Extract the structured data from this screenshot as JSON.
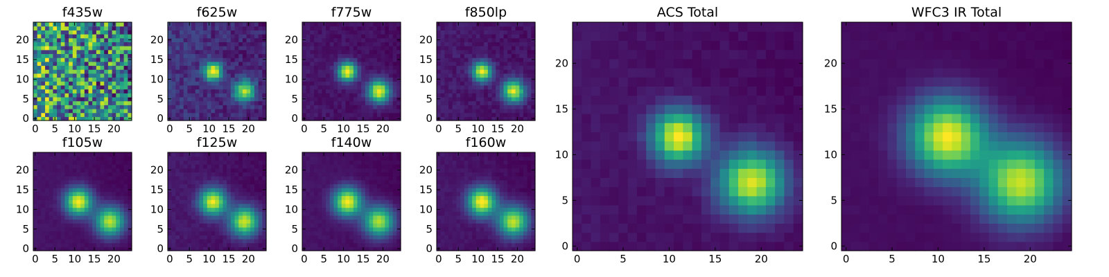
{
  "chart_data": [
    {
      "type": "heatmap",
      "title": "f435w",
      "grid": 25,
      "xlim": [
        -0.5,
        24.5
      ],
      "ylim": [
        -0.5,
        24.5
      ],
      "xticks": [
        0,
        5,
        10,
        15,
        20
      ],
      "yticks": [
        0,
        5,
        10,
        15,
        20
      ],
      "colormap": "viridis",
      "noise": 0.95,
      "background": 0.45,
      "peaks": [],
      "seed": 7
    },
    {
      "type": "heatmap",
      "title": "f625w",
      "grid": 25,
      "xlim": [
        -0.5,
        24.5
      ],
      "ylim": [
        -0.5,
        24.5
      ],
      "xticks": [
        0,
        5,
        10,
        15,
        20
      ],
      "yticks": [
        0,
        5,
        10,
        15,
        20
      ],
      "colormap": "viridis",
      "noise": 0.16,
      "background": 0.22,
      "peaks": [
        {
          "x": 11,
          "y": 12,
          "amp": 0.85,
          "sigma": 1.6
        },
        {
          "x": 19,
          "y": 7,
          "amp": 0.75,
          "sigma": 1.9
        }
      ],
      "seed": 11
    },
    {
      "type": "heatmap",
      "title": "f775w",
      "grid": 25,
      "xlim": [
        -0.5,
        24.5
      ],
      "ylim": [
        -0.5,
        24.5
      ],
      "xticks": [
        0,
        5,
        10,
        15,
        20
      ],
      "yticks": [
        0,
        5,
        10,
        15,
        20
      ],
      "colormap": "viridis",
      "noise": 0.07,
      "background": 0.08,
      "peaks": [
        {
          "x": 11,
          "y": 12,
          "amp": 0.95,
          "sigma": 1.7
        },
        {
          "x": 19,
          "y": 7,
          "amp": 0.92,
          "sigma": 2.0
        }
      ],
      "seed": 13
    },
    {
      "type": "heatmap",
      "title": "f850lp",
      "grid": 25,
      "xlim": [
        -0.5,
        24.5
      ],
      "ylim": [
        -0.5,
        24.5
      ],
      "xticks": [
        0,
        5,
        10,
        15,
        20
      ],
      "yticks": [
        0,
        5,
        10,
        15,
        20
      ],
      "colormap": "viridis",
      "noise": 0.09,
      "background": 0.1,
      "peaks": [
        {
          "x": 11,
          "y": 12,
          "amp": 0.95,
          "sigma": 1.7
        },
        {
          "x": 19,
          "y": 7,
          "amp": 0.92,
          "sigma": 2.0
        }
      ],
      "seed": 17
    },
    {
      "type": "heatmap",
      "title": "f105w",
      "grid": 25,
      "xlim": [
        -0.5,
        24.5
      ],
      "ylim": [
        -0.5,
        24.5
      ],
      "xticks": [
        0,
        5,
        10,
        15,
        20
      ],
      "yticks": [
        0,
        5,
        10,
        15,
        20
      ],
      "colormap": "viridis",
      "noise": 0.03,
      "background": 0.12,
      "peaks": [
        {
          "x": 11,
          "y": 12,
          "amp": 0.9,
          "sigma": 2.4
        },
        {
          "x": 19,
          "y": 7,
          "amp": 0.82,
          "sigma": 2.6
        }
      ],
      "seed": 19
    },
    {
      "type": "heatmap",
      "title": "f125w",
      "grid": 25,
      "xlim": [
        -0.5,
        24.5
      ],
      "ylim": [
        -0.5,
        24.5
      ],
      "xticks": [
        0,
        5,
        10,
        15,
        20
      ],
      "yticks": [
        0,
        5,
        10,
        15,
        20
      ],
      "colormap": "viridis",
      "noise": 0.05,
      "background": 0.14,
      "peaks": [
        {
          "x": 11,
          "y": 12,
          "amp": 0.88,
          "sigma": 2.4
        },
        {
          "x": 19,
          "y": 7,
          "amp": 0.85,
          "sigma": 2.6
        }
      ],
      "seed": 23
    },
    {
      "type": "heatmap",
      "title": "f140w",
      "grid": 25,
      "xlim": [
        -0.5,
        24.5
      ],
      "ylim": [
        -0.5,
        24.5
      ],
      "xticks": [
        0,
        5,
        10,
        15,
        20
      ],
      "yticks": [
        0,
        5,
        10,
        15,
        20
      ],
      "colormap": "viridis",
      "noise": 0.03,
      "background": 0.12,
      "peaks": [
        {
          "x": 11,
          "y": 12,
          "amp": 0.9,
          "sigma": 2.5
        },
        {
          "x": 19,
          "y": 7,
          "amp": 0.8,
          "sigma": 2.7
        }
      ],
      "seed": 29
    },
    {
      "type": "heatmap",
      "title": "f160w",
      "grid": 25,
      "xlim": [
        -0.5,
        24.5
      ],
      "ylim": [
        -0.5,
        24.5
      ],
      "xticks": [
        0,
        5,
        10,
        15,
        20
      ],
      "yticks": [
        0,
        5,
        10,
        15,
        20
      ],
      "colormap": "viridis",
      "noise": 0.04,
      "background": 0.12,
      "peaks": [
        {
          "x": 11,
          "y": 12,
          "amp": 0.88,
          "sigma": 2.5
        },
        {
          "x": 19,
          "y": 7,
          "amp": 0.8,
          "sigma": 2.7
        }
      ],
      "seed": 31
    },
    {
      "type": "heatmap",
      "title": "ACS Total",
      "grid": 25,
      "xlim": [
        -0.5,
        24.5
      ],
      "ylim": [
        -0.5,
        24.5
      ],
      "xticks": [
        0,
        5,
        10,
        15,
        20
      ],
      "yticks": [
        0,
        5,
        10,
        15,
        20
      ],
      "colormap": "viridis",
      "noise": 0.05,
      "background": 0.1,
      "peaks": [
        {
          "x": 11,
          "y": 12,
          "amp": 0.95,
          "sigma": 2.0
        },
        {
          "x": 19,
          "y": 7,
          "amp": 0.9,
          "sigma": 2.5
        }
      ],
      "seed": 37
    },
    {
      "type": "heatmap",
      "title": "WFC3 IR Total",
      "grid": 25,
      "xlim": [
        -0.5,
        24.5
      ],
      "ylim": [
        -0.5,
        24.5
      ],
      "xticks": [
        0,
        5,
        10,
        15,
        20
      ],
      "yticks": [
        0,
        5,
        10,
        15,
        20
      ],
      "colormap": "viridis",
      "noise": 0.02,
      "background": 0.08,
      "peaks": [
        {
          "x": 11,
          "y": 12,
          "amp": 0.9,
          "sigma": 2.9
        },
        {
          "x": 19,
          "y": 7,
          "amp": 0.85,
          "sigma": 3.1
        }
      ],
      "seed": 41
    }
  ]
}
